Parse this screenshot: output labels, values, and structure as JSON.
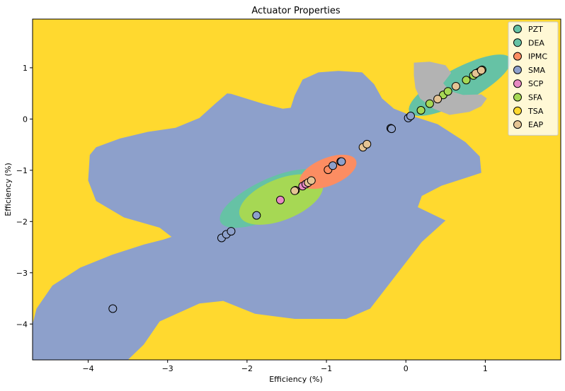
{
  "chart_data": {
    "type": "scatter",
    "title": "Actuator Properties",
    "xlabel": "Efficiency (%)",
    "ylabel": "Efficiency (%)",
    "xlim": [
      -4.7,
      1.95
    ],
    "ylim": [
      -4.7,
      1.95
    ],
    "xticks": [
      -4,
      -3,
      -2,
      -1,
      0,
      1
    ],
    "yticks": [
      -4,
      -3,
      -2,
      -1,
      0,
      1
    ],
    "xtick_labels": [
      "−4",
      "−3",
      "−2",
      "−1",
      "0",
      "1"
    ],
    "ytick_labels": [
      "−4",
      "−3",
      "−2",
      "−1",
      "0",
      "1"
    ],
    "grid": false,
    "legend_position": "top-right",
    "background_region_color": "#ffd92f",
    "series": [
      {
        "name": "PZT",
        "color": "#66c2a5",
        "points": []
      },
      {
        "name": "DEA",
        "color": "#66c2a5",
        "points": []
      },
      {
        "name": "IPMC",
        "color": "#fc8d62",
        "points": [
          [
            -0.98,
            -0.99
          ]
        ]
      },
      {
        "name": "SMA",
        "color": "#8da0cb",
        "points": [
          [
            -3.69,
            -3.7
          ],
          [
            -2.32,
            -2.32
          ],
          [
            -2.26,
            -2.25
          ],
          [
            -2.2,
            -2.19
          ],
          [
            -1.88,
            -1.88
          ],
          [
            -0.92,
            -0.91
          ],
          [
            -0.82,
            -0.83
          ],
          [
            -0.81,
            -0.83
          ],
          [
            -0.19,
            -0.18
          ],
          [
            -0.18,
            -0.19
          ],
          [
            0.03,
            0.02
          ],
          [
            0.06,
            0.06
          ]
        ]
      },
      {
        "name": "SCP",
        "color": "#e78ac3",
        "points": [
          [
            -1.58,
            -1.58
          ],
          [
            -1.39,
            -1.39
          ],
          [
            -1.3,
            -1.31
          ],
          [
            -1.26,
            -1.27
          ]
        ]
      },
      {
        "name": "SFA",
        "color": "#a6d854",
        "points": [
          [
            0.19,
            0.17
          ],
          [
            0.3,
            0.3
          ],
          [
            0.47,
            0.47
          ],
          [
            0.53,
            0.54
          ],
          [
            0.76,
            0.76
          ],
          [
            0.85,
            0.85
          ],
          [
            0.92,
            0.92
          ],
          [
            0.96,
            0.96
          ]
        ]
      },
      {
        "name": "TSA",
        "color": "#ffd92f",
        "points": []
      },
      {
        "name": "EAP",
        "color": "#e5c494",
        "points": [
          [
            -0.54,
            -0.55
          ],
          [
            -0.49,
            -0.49
          ],
          [
            -1.23,
            -1.24
          ],
          [
            -1.19,
            -1.2
          ],
          [
            -1.4,
            -1.4
          ],
          [
            0.4,
            0.39
          ],
          [
            0.63,
            0.64
          ],
          [
            0.88,
            0.89
          ],
          [
            0.95,
            0.95
          ]
        ]
      }
    ],
    "regions": [
      {
        "name": "SMA",
        "color": "#8da0cb",
        "polygon": [
          [
            -4.7,
            -4.0
          ],
          [
            -4.65,
            -3.7
          ],
          [
            -4.45,
            -3.25
          ],
          [
            -4.1,
            -2.9
          ],
          [
            -3.7,
            -2.65
          ],
          [
            -3.3,
            -2.45
          ],
          [
            -3.05,
            -2.35
          ],
          [
            -2.95,
            -2.3
          ],
          [
            -3.1,
            -2.12
          ],
          [
            -3.55,
            -1.92
          ],
          [
            -3.9,
            -1.6
          ],
          [
            -4.0,
            -1.2
          ],
          [
            -3.98,
            -0.7
          ],
          [
            -3.9,
            -0.55
          ],
          [
            -3.6,
            -0.38
          ],
          [
            -3.25,
            -0.25
          ],
          [
            -2.9,
            -0.17
          ],
          [
            -2.6,
            0.02
          ],
          [
            -2.4,
            0.3
          ],
          [
            -2.25,
            0.5
          ],
          [
            -2.2,
            0.49
          ],
          [
            -1.8,
            0.3
          ],
          [
            -1.55,
            0.2
          ],
          [
            -1.45,
            0.22
          ],
          [
            -1.4,
            0.46
          ],
          [
            -1.3,
            0.77
          ],
          [
            -1.1,
            0.91
          ],
          [
            -0.85,
            0.94
          ],
          [
            -0.55,
            0.91
          ],
          [
            -0.4,
            0.68
          ],
          [
            -0.3,
            0.4
          ],
          [
            -0.15,
            0.2
          ],
          [
            0.1,
            0.05
          ],
          [
            0.4,
            -0.1
          ],
          [
            0.75,
            -0.45
          ],
          [
            0.93,
            -0.73
          ],
          [
            0.95,
            -1.05
          ],
          [
            0.75,
            -1.15
          ],
          [
            0.45,
            -1.3
          ],
          [
            0.2,
            -1.5
          ],
          [
            0.15,
            -1.72
          ],
          [
            0.5,
            -1.98
          ],
          [
            0.2,
            -2.4
          ],
          [
            -0.05,
            -2.9
          ],
          [
            -0.25,
            -3.3
          ],
          [
            -0.45,
            -3.7
          ],
          [
            -0.75,
            -3.9
          ],
          [
            -1.4,
            -3.9
          ],
          [
            -1.9,
            -3.8
          ],
          [
            -2.3,
            -3.55
          ],
          [
            -2.6,
            -3.6
          ],
          [
            -3.1,
            -3.95
          ],
          [
            -3.3,
            -4.4
          ],
          [
            -3.5,
            -4.7
          ],
          [
            -4.7,
            -4.7
          ]
        ]
      },
      {
        "name": "DEA",
        "color": "#66c2a5",
        "ellipse": {
          "center": [
            -1.7,
            -1.55
          ],
          "rx": 0.7,
          "ry": 0.38,
          "angle": -25
        }
      },
      {
        "name": "SFA",
        "color": "#a6d854",
        "ellipse": {
          "center": [
            -1.57,
            -1.57
          ],
          "rx": 0.56,
          "ry": 0.4,
          "angle": -22
        }
      },
      {
        "name": "IPMC",
        "color": "#fc8d62",
        "ellipse": {
          "center": [
            -0.98,
            -1.03
          ],
          "rx": 0.38,
          "ry": 0.27,
          "angle": -22
        }
      },
      {
        "name": "DEA",
        "color": "#66c2a5",
        "ellipse": {
          "center": [
            0.68,
            0.66
          ],
          "rx": 0.72,
          "ry": 0.33,
          "angle": -28
        }
      },
      {
        "name": "TSA",
        "color": "#ffd92f",
        "ellipse": {
          "center": [
            0.33,
            0.74
          ],
          "rx": 0.14,
          "ry": 0.13,
          "angle": 0
        }
      },
      {
        "name": "SCP",
        "color": "#b3b3b3",
        "polygon": [
          [
            0.1,
            1.1
          ],
          [
            0.3,
            1.12
          ],
          [
            0.5,
            1.05
          ],
          [
            0.57,
            0.9
          ],
          [
            0.47,
            0.7
          ],
          [
            0.55,
            0.55
          ],
          [
            0.72,
            0.47
          ],
          [
            0.95,
            0.48
          ],
          [
            1.02,
            0.4
          ],
          [
            0.95,
            0.25
          ],
          [
            0.8,
            0.14
          ],
          [
            0.55,
            0.08
          ],
          [
            0.35,
            0.2
          ],
          [
            0.18,
            0.4
          ],
          [
            0.12,
            0.6
          ],
          [
            0.1,
            0.85
          ]
        ]
      }
    ]
  }
}
